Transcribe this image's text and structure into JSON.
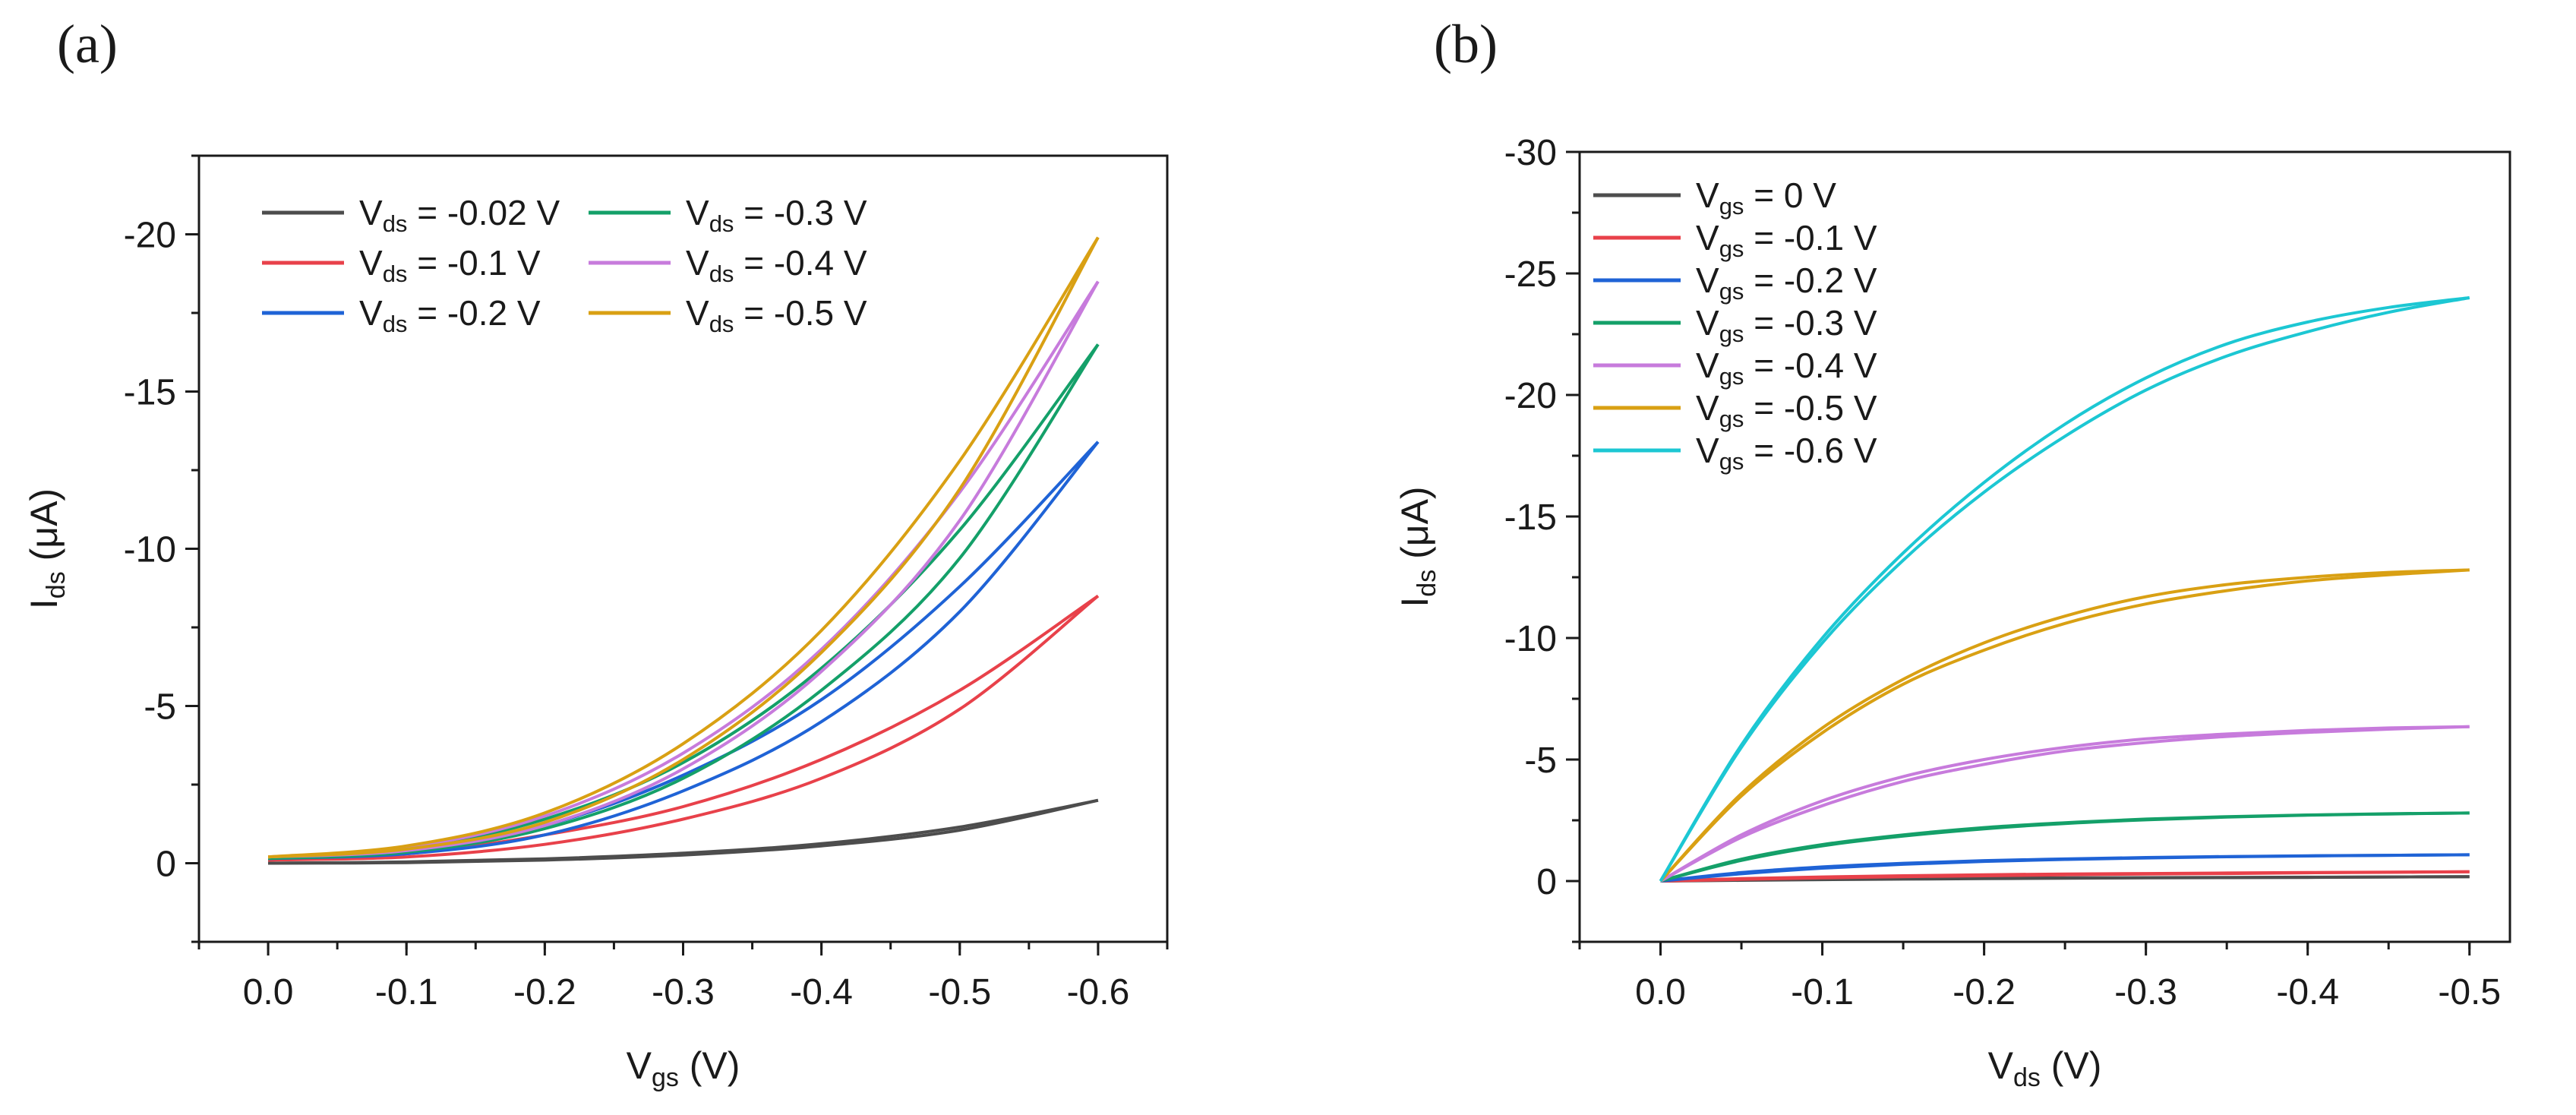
{
  "panel_labels": [
    "(a)",
    "(b)"
  ],
  "chart_data": [
    {
      "type": "line",
      "panel": "(a)",
      "xlabel": "V_gs (V)",
      "xlabel_main": "V",
      "xlabel_sub": "gs",
      "xlabel_rest": " (V)",
      "ylabel": "I_ds (μA)",
      "ylabel_main": "I",
      "ylabel_sub": "ds",
      "ylabel_rest": " (μA)",
      "xlim": [
        0.05,
        -0.65
      ],
      "ylim": [
        2.5,
        -22.5
      ],
      "xticks": [
        0.0,
        -0.1,
        -0.2,
        -0.3,
        -0.4,
        -0.5,
        -0.6
      ],
      "xtick_labels": [
        "0.0",
        "-0.1",
        "-0.2",
        "-0.3",
        "-0.4",
        "-0.5",
        "-0.6"
      ],
      "yticks": [
        0,
        -5,
        -10,
        -15,
        -20
      ],
      "ytick_labels": [
        "0",
        "-5",
        "-10",
        "-15",
        "-20"
      ],
      "legend_position": "top-left",
      "legend_columns": 2,
      "hysteresis": true,
      "series": [
        {
          "name": "V_ds = -0.02 V",
          "label_main": "V",
          "label_sub": "ds",
          "label_rest": " = -0.02 V",
          "color": "#4d4d4d",
          "x": [
            0.0,
            -0.1,
            -0.2,
            -0.3,
            -0.4,
            -0.5,
            -0.6
          ],
          "forward": [
            0.0,
            -0.04,
            -0.14,
            -0.32,
            -0.62,
            -1.15,
            -2.0
          ],
          "backward": [
            0.0,
            -0.02,
            -0.1,
            -0.26,
            -0.55,
            -1.05,
            -2.0
          ]
        },
        {
          "name": "V_ds = -0.1 V",
          "label_main": "V",
          "label_sub": "ds",
          "label_rest": " = -0.1 V",
          "color": "#e8414a",
          "x": [
            0.0,
            -0.1,
            -0.2,
            -0.3,
            -0.4,
            -0.5,
            -0.6
          ],
          "forward": [
            -0.1,
            -0.3,
            -0.9,
            -1.8,
            -3.3,
            -5.5,
            -8.5
          ],
          "backward": [
            -0.1,
            -0.2,
            -0.6,
            -1.4,
            -2.7,
            -4.9,
            -8.5
          ]
        },
        {
          "name": "V_ds = -0.2 V",
          "label_main": "V",
          "label_sub": "ds",
          "label_rest": " = -0.2 V",
          "color": "#1f63d6",
          "x": [
            0.0,
            -0.1,
            -0.2,
            -0.3,
            -0.4,
            -0.5,
            -0.6
          ],
          "forward": [
            -0.15,
            -0.4,
            -1.2,
            -2.8,
            -5.2,
            -8.8,
            -13.4
          ],
          "backward": [
            -0.15,
            -0.3,
            -0.9,
            -2.3,
            -4.5,
            -8.0,
            -13.4
          ]
        },
        {
          "name": "V_ds = -0.3 V",
          "label_main": "V",
          "label_sub": "ds",
          "label_rest": " = -0.3 V",
          "color": "#14a069",
          "x": [
            0.0,
            -0.1,
            -0.2,
            -0.3,
            -0.4,
            -0.5,
            -0.6
          ],
          "forward": [
            -0.15,
            -0.45,
            -1.4,
            -3.2,
            -6.2,
            -10.6,
            -16.5
          ],
          "backward": [
            -0.15,
            -0.35,
            -1.1,
            -2.7,
            -5.5,
            -9.7,
            -16.5
          ]
        },
        {
          "name": "V_ds = -0.4 V",
          "label_main": "V",
          "label_sub": "ds",
          "label_rest": " = -0.4 V",
          "color": "#c77bdc",
          "x": [
            0.0,
            -0.1,
            -0.2,
            -0.3,
            -0.4,
            -0.5,
            -0.6
          ],
          "forward": [
            -0.2,
            -0.5,
            -1.5,
            -3.5,
            -6.8,
            -11.8,
            -18.5
          ],
          "backward": [
            -0.2,
            -0.4,
            -1.2,
            -3.0,
            -6.1,
            -10.9,
            -18.5
          ]
        },
        {
          "name": "V_ds = -0.5 V",
          "label_main": "V",
          "label_sub": "ds",
          "label_rest": " = -0.5 V",
          "color": "#d9a013",
          "x": [
            0.0,
            -0.1,
            -0.2,
            -0.3,
            -0.4,
            -0.5,
            -0.6
          ],
          "forward": [
            -0.2,
            -0.55,
            -1.6,
            -3.8,
            -7.4,
            -12.8,
            -19.9
          ],
          "backward": [
            -0.2,
            -0.45,
            -1.3,
            -3.3,
            -6.7,
            -11.9,
            -19.9
          ]
        }
      ]
    },
    {
      "type": "line",
      "panel": "(b)",
      "xlabel": "V_ds (V)",
      "xlabel_main": "V",
      "xlabel_sub": "ds",
      "xlabel_rest": " (V)",
      "ylabel": "I_ds (μA)",
      "ylabel_main": "I",
      "ylabel_sub": "ds",
      "ylabel_rest": " (μA)",
      "xlim": [
        0.05,
        -0.525
      ],
      "ylim": [
        2.5,
        -30.0
      ],
      "xticks": [
        0.0,
        -0.1,
        -0.2,
        -0.3,
        -0.4,
        -0.5
      ],
      "xtick_labels": [
        "0.0",
        "-0.1",
        "-0.2",
        "-0.3",
        "-0.4",
        "-0.5"
      ],
      "yticks": [
        0,
        -5,
        -10,
        -15,
        -20,
        -25,
        -30
      ],
      "ytick_labels": [
        "0",
        "-5",
        "-10",
        "-15",
        "-20",
        "-25",
        "-30"
      ],
      "legend_position": "top-left",
      "legend_columns": 1,
      "hysteresis": true,
      "series": [
        {
          "name": "V_gs = 0 V",
          "label_main": "V",
          "label_sub": "gs",
          "label_rest": " = 0 V",
          "color": "#4d4d4d",
          "x": [
            0.0,
            -0.05,
            -0.1,
            -0.15,
            -0.2,
            -0.25,
            -0.3,
            -0.35,
            -0.4,
            -0.45,
            -0.5
          ],
          "forward": [
            0,
            -0.05,
            -0.08,
            -0.1,
            -0.12,
            -0.13,
            -0.14,
            -0.15,
            -0.16,
            -0.17,
            -0.18
          ],
          "backward": [
            0,
            -0.03,
            -0.06,
            -0.08,
            -0.1,
            -0.12,
            -0.13,
            -0.14,
            -0.15,
            -0.17,
            -0.18
          ]
        },
        {
          "name": "V_gs = -0.1 V",
          "label_main": "V",
          "label_sub": "gs",
          "label_rest": " = -0.1 V",
          "color": "#e8414a",
          "x": [
            0.0,
            -0.05,
            -0.1,
            -0.15,
            -0.2,
            -0.25,
            -0.3,
            -0.35,
            -0.4,
            -0.45,
            -0.5
          ],
          "forward": [
            0,
            -0.1,
            -0.17,
            -0.22,
            -0.26,
            -0.29,
            -0.31,
            -0.33,
            -0.35,
            -0.37,
            -0.38
          ],
          "backward": [
            0,
            -0.07,
            -0.13,
            -0.18,
            -0.22,
            -0.26,
            -0.29,
            -0.31,
            -0.34,
            -0.36,
            -0.38
          ]
        },
        {
          "name": "V_gs = -0.2 V",
          "label_main": "V",
          "label_sub": "gs",
          "label_rest": " = -0.2 V",
          "color": "#1f63d6",
          "x": [
            0.0,
            -0.05,
            -0.1,
            -0.15,
            -0.2,
            -0.25,
            -0.3,
            -0.35,
            -0.4,
            -0.45,
            -0.5
          ],
          "forward": [
            0,
            -0.35,
            -0.58,
            -0.73,
            -0.84,
            -0.91,
            -0.97,
            -1.01,
            -1.04,
            -1.06,
            -1.08
          ],
          "backward": [
            0,
            -0.3,
            -0.53,
            -0.69,
            -0.81,
            -0.89,
            -0.95,
            -1.0,
            -1.03,
            -1.06,
            -1.08
          ]
        },
        {
          "name": "V_gs = -0.3 V",
          "label_main": "V",
          "label_sub": "gs",
          "label_rest": " = -0.3 V",
          "color": "#14a069",
          "x": [
            0.0,
            -0.05,
            -0.1,
            -0.15,
            -0.2,
            -0.25,
            -0.3,
            -0.35,
            -0.4,
            -0.45,
            -0.5
          ],
          "forward": [
            0,
            -0.9,
            -1.5,
            -1.9,
            -2.2,
            -2.4,
            -2.55,
            -2.65,
            -2.72,
            -2.77,
            -2.8
          ],
          "backward": [
            0,
            -0.85,
            -1.45,
            -1.85,
            -2.15,
            -2.37,
            -2.52,
            -2.63,
            -2.71,
            -2.76,
            -2.8
          ]
        },
        {
          "name": "V_gs = -0.4 V",
          "label_main": "V",
          "label_sub": "gs",
          "label_rest": " = -0.4 V",
          "color": "#c77bdc",
          "x": [
            0.0,
            -0.05,
            -0.1,
            -0.15,
            -0.2,
            -0.25,
            -0.3,
            -0.35,
            -0.4,
            -0.45,
            -0.5
          ],
          "forward": [
            0,
            -1.9,
            -3.3,
            -4.3,
            -5.0,
            -5.5,
            -5.85,
            -6.05,
            -6.2,
            -6.3,
            -6.35
          ],
          "backward": [
            0,
            -1.8,
            -3.1,
            -4.1,
            -4.8,
            -5.35,
            -5.7,
            -5.95,
            -6.12,
            -6.25,
            -6.35
          ]
        },
        {
          "name": "V_gs = -0.5 V",
          "label_main": "V",
          "label_sub": "gs",
          "label_rest": " = -0.5 V",
          "color": "#d9a013",
          "x": [
            0.0,
            -0.05,
            -0.1,
            -0.15,
            -0.2,
            -0.25,
            -0.3,
            -0.35,
            -0.4,
            -0.45,
            -0.5
          ],
          "forward": [
            0,
            -3.6,
            -6.3,
            -8.3,
            -9.8,
            -10.9,
            -11.7,
            -12.2,
            -12.5,
            -12.7,
            -12.8
          ],
          "backward": [
            0,
            -3.5,
            -6.1,
            -8.1,
            -9.5,
            -10.6,
            -11.4,
            -11.95,
            -12.35,
            -12.6,
            -12.8
          ]
        },
        {
          "name": "V_gs = -0.6 V",
          "label_main": "V",
          "label_sub": "gs",
          "label_rest": " = -0.6 V",
          "color": "#1cc7d3",
          "x": [
            0.0,
            -0.05,
            -0.1,
            -0.15,
            -0.2,
            -0.25,
            -0.3,
            -0.35,
            -0.4,
            -0.45,
            -0.5
          ],
          "forward": [
            0,
            -5.6,
            -10.0,
            -13.5,
            -16.4,
            -18.8,
            -20.7,
            -22.1,
            -23.0,
            -23.6,
            -24.0
          ],
          "backward": [
            0,
            -5.5,
            -9.8,
            -13.2,
            -16.0,
            -18.3,
            -20.2,
            -21.6,
            -22.6,
            -23.4,
            -24.0
          ]
        }
      ]
    }
  ]
}
